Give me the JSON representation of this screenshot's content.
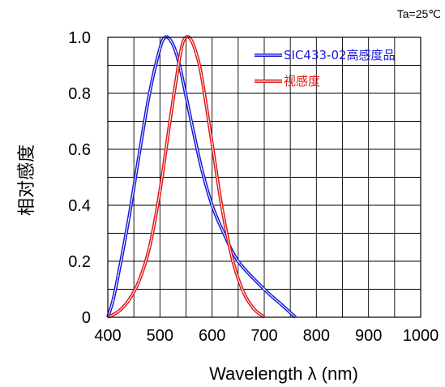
{
  "chart_data": {
    "type": "line",
    "title": "",
    "xlabel": "Wavelength λ (nm)",
    "ylabel": "相对感度",
    "annotation": "Ta=25℃",
    "xlim": [
      400,
      1000
    ],
    "ylim": [
      0,
      1.0
    ],
    "x_ticks": [
      "400",
      "500",
      "600",
      "700",
      "800",
      "900",
      "1000"
    ],
    "y_ticks": [
      "0",
      "0.2",
      "0.4",
      "0.6",
      "0.8",
      "1.0"
    ],
    "grid": true,
    "legend_position": "top-right",
    "series": [
      {
        "name": "SIC433-02高感度品",
        "color": "#1a1adc",
        "x": [
          400,
          410,
          420,
          440,
          460,
          480,
          500,
          510,
          520,
          530,
          540,
          560,
          580,
          600,
          620,
          650,
          700,
          730,
          760
        ],
        "y": [
          0.0,
          0.06,
          0.15,
          0.35,
          0.58,
          0.8,
          0.96,
          1.0,
          0.99,
          0.95,
          0.88,
          0.7,
          0.53,
          0.4,
          0.31,
          0.2,
          0.1,
          0.05,
          0.0
        ]
      },
      {
        "name": "视感度",
        "color": "#e01818",
        "x": [
          400,
          420,
          440,
          460,
          480,
          500,
          520,
          540,
          550,
          560,
          570,
          580,
          600,
          620,
          640,
          660,
          680,
          700
        ],
        "y": [
          0.0,
          0.02,
          0.06,
          0.13,
          0.25,
          0.45,
          0.71,
          0.95,
          1.0,
          0.99,
          0.94,
          0.86,
          0.62,
          0.38,
          0.2,
          0.09,
          0.03,
          0.0
        ]
      }
    ]
  }
}
